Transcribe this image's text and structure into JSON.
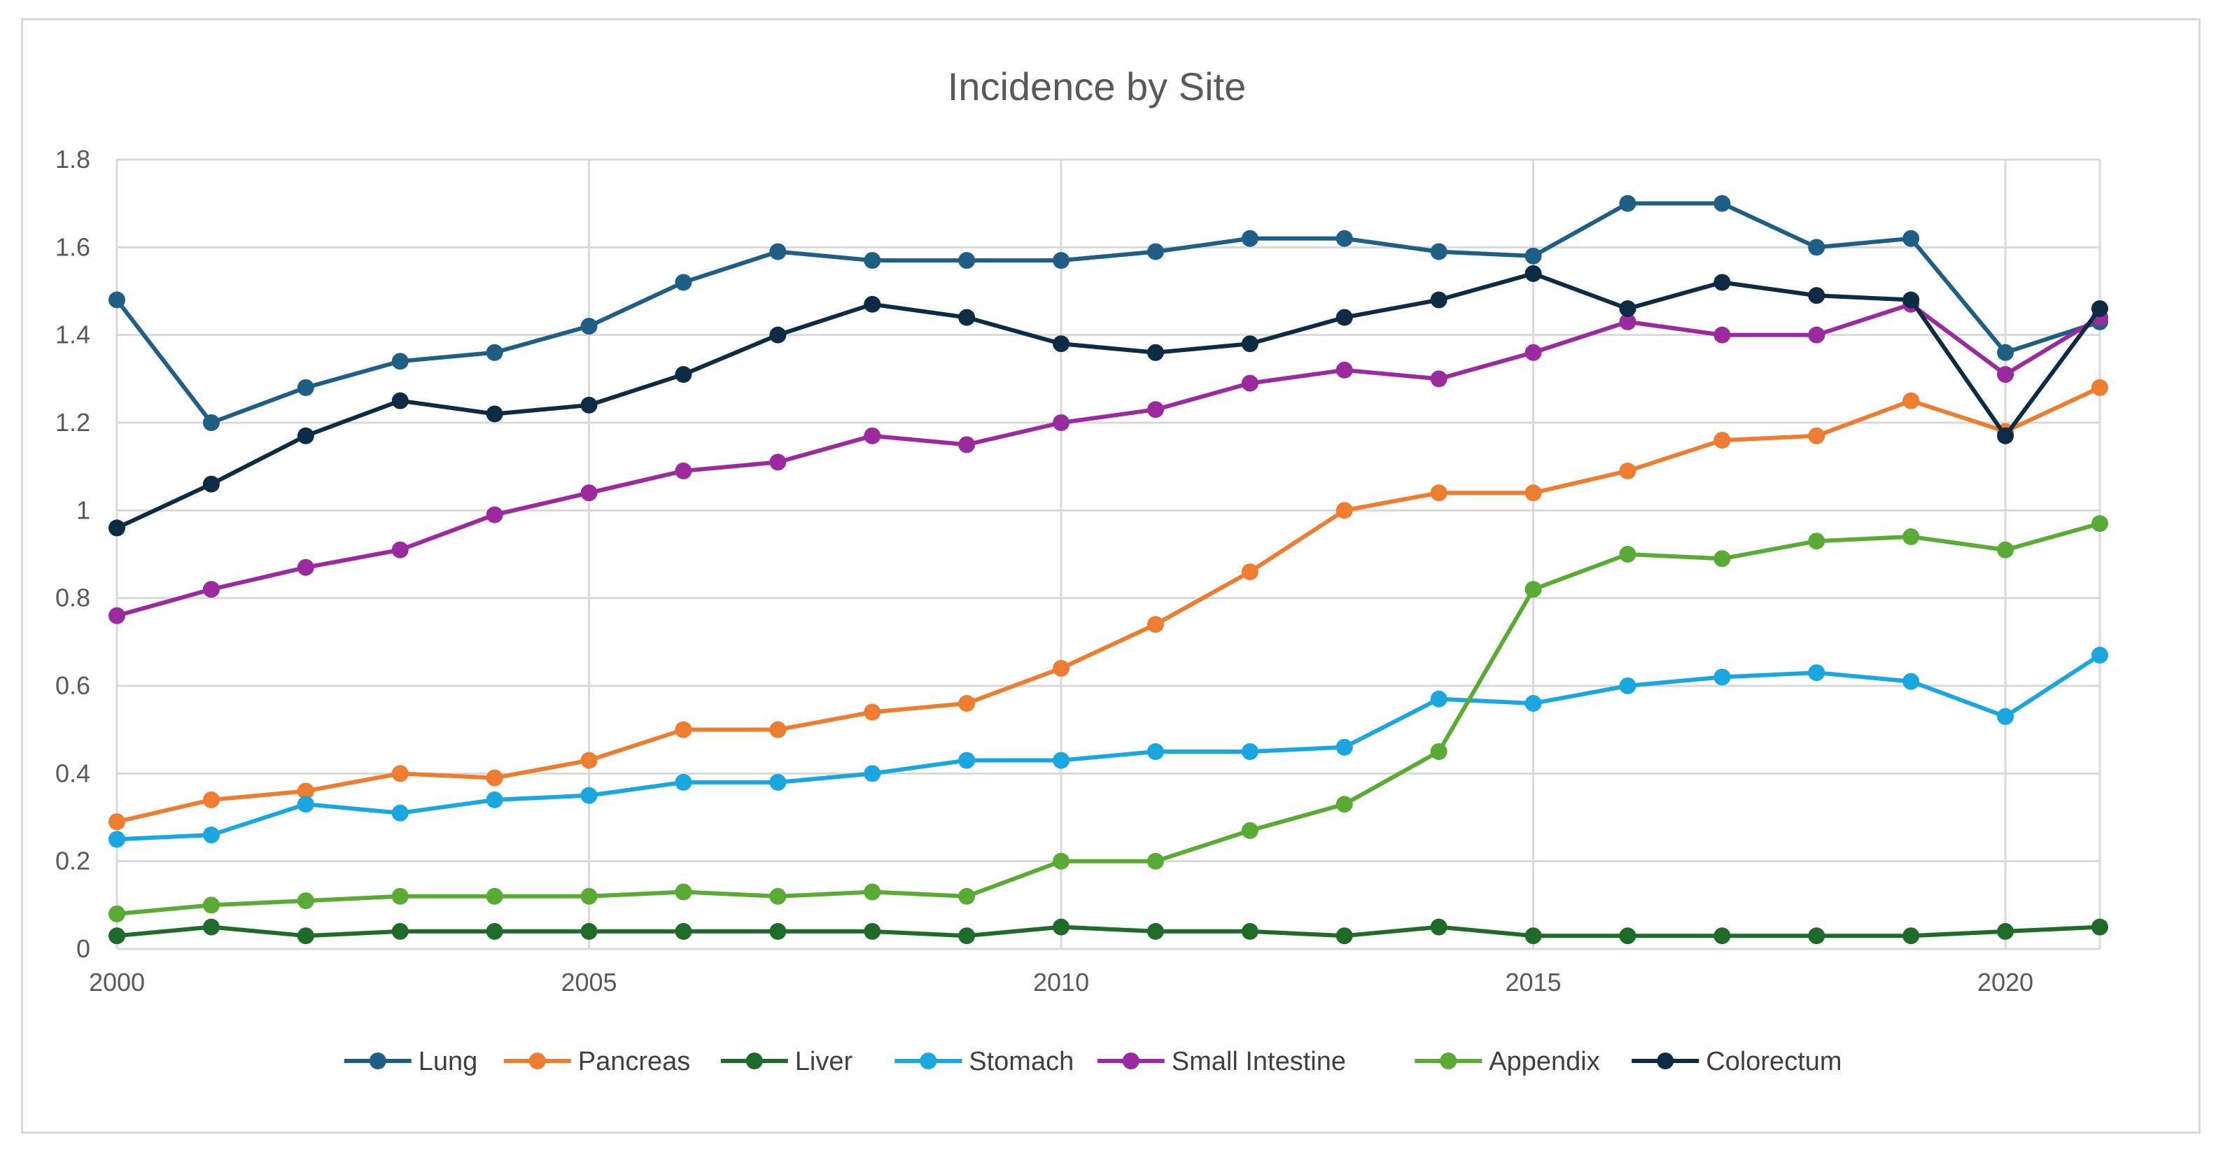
{
  "chart_data": {
    "type": "line",
    "title": "Incidence by Site",
    "xlabel": "",
    "ylabel": "",
    "x": [
      2000,
      2001,
      2002,
      2003,
      2004,
      2005,
      2006,
      2007,
      2008,
      2009,
      2010,
      2011,
      2012,
      2013,
      2014,
      2015,
      2016,
      2017,
      2018,
      2019,
      2020,
      2021
    ],
    "xlim": [
      2000,
      2021
    ],
    "xticks": [
      2000,
      2005,
      2010,
      2015,
      2020
    ],
    "xtick_labels": [
      "2000",
      "2005",
      "2010",
      "2015",
      "2020"
    ],
    "ylim": [
      0,
      1.8
    ],
    "yticks": [
      0,
      0.2,
      0.4,
      0.6,
      0.8,
      1,
      1.2,
      1.4,
      1.6,
      1.8
    ],
    "ytick_labels": [
      "0",
      "0.2",
      "0.4",
      "0.6",
      "0.8",
      "1",
      "1.2",
      "1.4",
      "1.6",
      "1.8"
    ],
    "grid": true,
    "legend_position": "bottom",
    "series": [
      {
        "name": "Lung",
        "color": "#1f5f86",
        "values": [
          1.48,
          1.2,
          1.28,
          1.34,
          1.36,
          1.42,
          1.52,
          1.59,
          1.57,
          1.57,
          1.57,
          1.59,
          1.62,
          1.62,
          1.59,
          1.58,
          1.7,
          1.7,
          1.6,
          1.62,
          1.36,
          1.43
        ]
      },
      {
        "name": "Pancreas",
        "color": "#ed7d31",
        "values": [
          0.29,
          0.34,
          0.36,
          0.4,
          0.39,
          0.43,
          0.5,
          0.5,
          0.54,
          0.56,
          0.64,
          0.74,
          0.86,
          1.0,
          1.04,
          1.04,
          1.09,
          1.16,
          1.17,
          1.25,
          1.18,
          1.28
        ]
      },
      {
        "name": "Liver",
        "color": "#1e6b2a",
        "values": [
          0.03,
          0.05,
          0.03,
          0.04,
          0.04,
          0.04,
          0.04,
          0.04,
          0.04,
          0.03,
          0.05,
          0.04,
          0.04,
          0.03,
          0.05,
          0.03,
          0.03,
          0.03,
          0.03,
          0.03,
          0.04,
          0.05
        ]
      },
      {
        "name": "Stomach",
        "color": "#1aa7df",
        "values": [
          0.25,
          0.26,
          0.33,
          0.31,
          0.34,
          0.35,
          0.38,
          0.38,
          0.4,
          0.43,
          0.43,
          0.45,
          0.45,
          0.46,
          0.57,
          0.56,
          0.6,
          0.62,
          0.63,
          0.61,
          0.53,
          0.67
        ]
      },
      {
        "name": "Small Intestine",
        "color": "#9b2a9e",
        "values": [
          0.76,
          0.82,
          0.87,
          0.91,
          0.99,
          1.04,
          1.09,
          1.11,
          1.17,
          1.15,
          1.2,
          1.23,
          1.29,
          1.32,
          1.3,
          1.36,
          1.43,
          1.4,
          1.4,
          1.47,
          1.31,
          1.44
        ]
      },
      {
        "name": "Appendix",
        "color": "#5aab35",
        "values": [
          0.08,
          0.1,
          0.11,
          0.12,
          0.12,
          0.12,
          0.13,
          0.12,
          0.13,
          0.12,
          0.2,
          0.2,
          0.27,
          0.33,
          0.45,
          0.82,
          0.9,
          0.89,
          0.93,
          0.94,
          0.91,
          0.97
        ]
      },
      {
        "name": "Colorectum",
        "color": "#0e2b45",
        "values": [
          0.96,
          1.06,
          1.17,
          1.25,
          1.22,
          1.24,
          1.31,
          1.4,
          1.47,
          1.44,
          1.38,
          1.36,
          1.38,
          1.44,
          1.48,
          1.54,
          1.46,
          1.52,
          1.49,
          1.48,
          1.17,
          1.46
        ]
      }
    ]
  }
}
